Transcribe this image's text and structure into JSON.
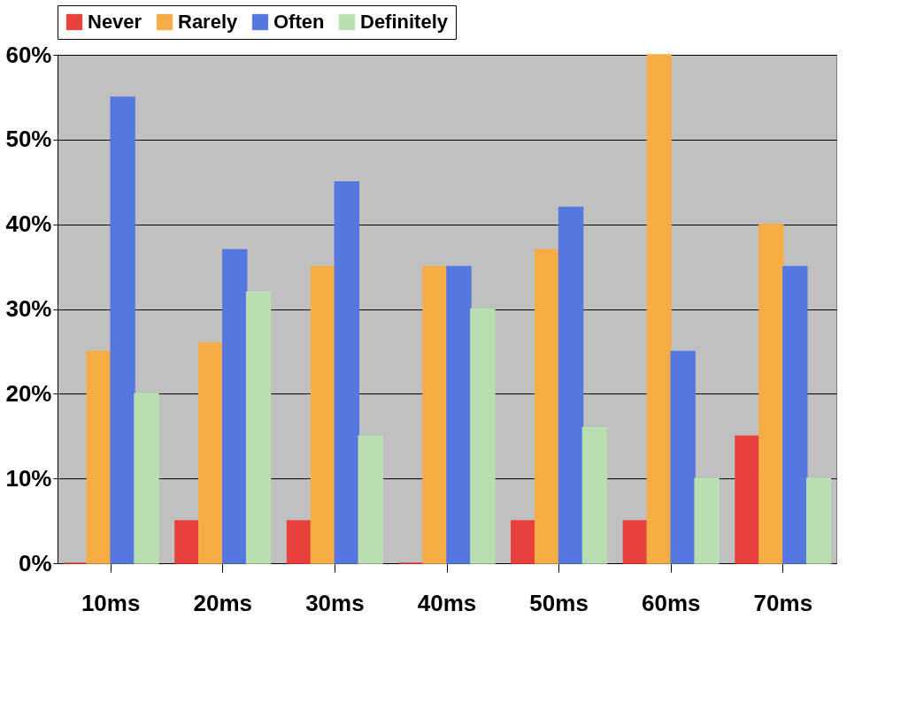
{
  "chart_data": {
    "type": "bar",
    "categories": [
      "10ms",
      "20ms",
      "30ms",
      "40ms",
      "50ms",
      "60ms",
      "70ms"
    ],
    "series": [
      {
        "name": "Never",
        "color": "#e8403c",
        "values": [
          0,
          5,
          5,
          0,
          5,
          5,
          15
        ]
      },
      {
        "name": "Rarely",
        "color": "#f7ad45",
        "values": [
          25,
          26,
          35,
          35,
          37,
          60,
          40
        ]
      },
      {
        "name": "Often",
        "color": "#5577e0",
        "values": [
          55,
          37,
          45,
          35,
          42,
          25,
          35
        ]
      },
      {
        "name": "Definitely",
        "color": "#b9dfb0",
        "values": [
          20,
          32,
          15,
          30,
          16,
          10,
          10
        ]
      }
    ],
    "ylim": [
      0,
      60
    ],
    "yticks": [
      {
        "value": 0,
        "label": "0%"
      },
      {
        "value": 10,
        "label": "10%"
      },
      {
        "value": 20,
        "label": "20%"
      },
      {
        "value": 30,
        "label": "30%"
      },
      {
        "value": 40,
        "label": "40%"
      },
      {
        "value": 50,
        "label": "50%"
      },
      {
        "value": 60,
        "label": "60%"
      }
    ],
    "grid": "y",
    "legend": "top"
  }
}
